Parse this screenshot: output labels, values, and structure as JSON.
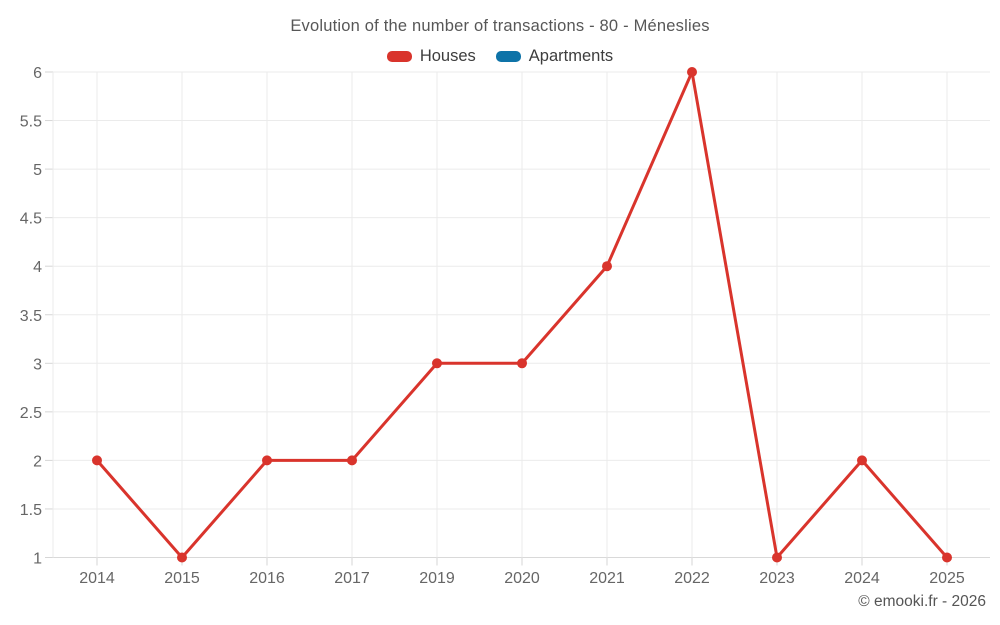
{
  "title": "Evolution of the number of transactions - 80 - Méneslies",
  "legend": {
    "items": [
      {
        "label": "Houses",
        "color": "#d9342c"
      },
      {
        "label": "Apartments",
        "color": "#0e73a8"
      }
    ]
  },
  "footer": "© emooki.fr - 2026",
  "colors": {
    "houses": "#d9342c",
    "apartments": "#0e73a8",
    "gridline": "#ebebeb",
    "axis_line": "#d6d6d6",
    "tick": "#d6d6d6",
    "axis_label": "#666666"
  },
  "chart_data": {
    "type": "line",
    "title": "Evolution of the number of transactions - 80 - Méneslies",
    "categories": [
      "2014",
      "2015",
      "2016",
      "2017",
      "2019",
      "2020",
      "2021",
      "2022",
      "2023",
      "2024",
      "2025"
    ],
    "series": [
      {
        "name": "Houses",
        "color": "#d9342c",
        "values": [
          2,
          1,
          2,
          2,
          3,
          3,
          4,
          6,
          1,
          2,
          1
        ]
      },
      {
        "name": "Apartments",
        "color": "#0e73a8",
        "values": []
      }
    ],
    "xlabel": "",
    "ylabel": "",
    "ylim": [
      1,
      6
    ],
    "ytick_step": 0.5,
    "ytick_labels": [
      "1",
      "1.5",
      "2",
      "2.5",
      "3",
      "3.5",
      "4",
      "4.5",
      "5",
      "5.5",
      "6"
    ],
    "grid": true,
    "legend_position": "top",
    "marker_radius": 5,
    "line_width": 3
  }
}
